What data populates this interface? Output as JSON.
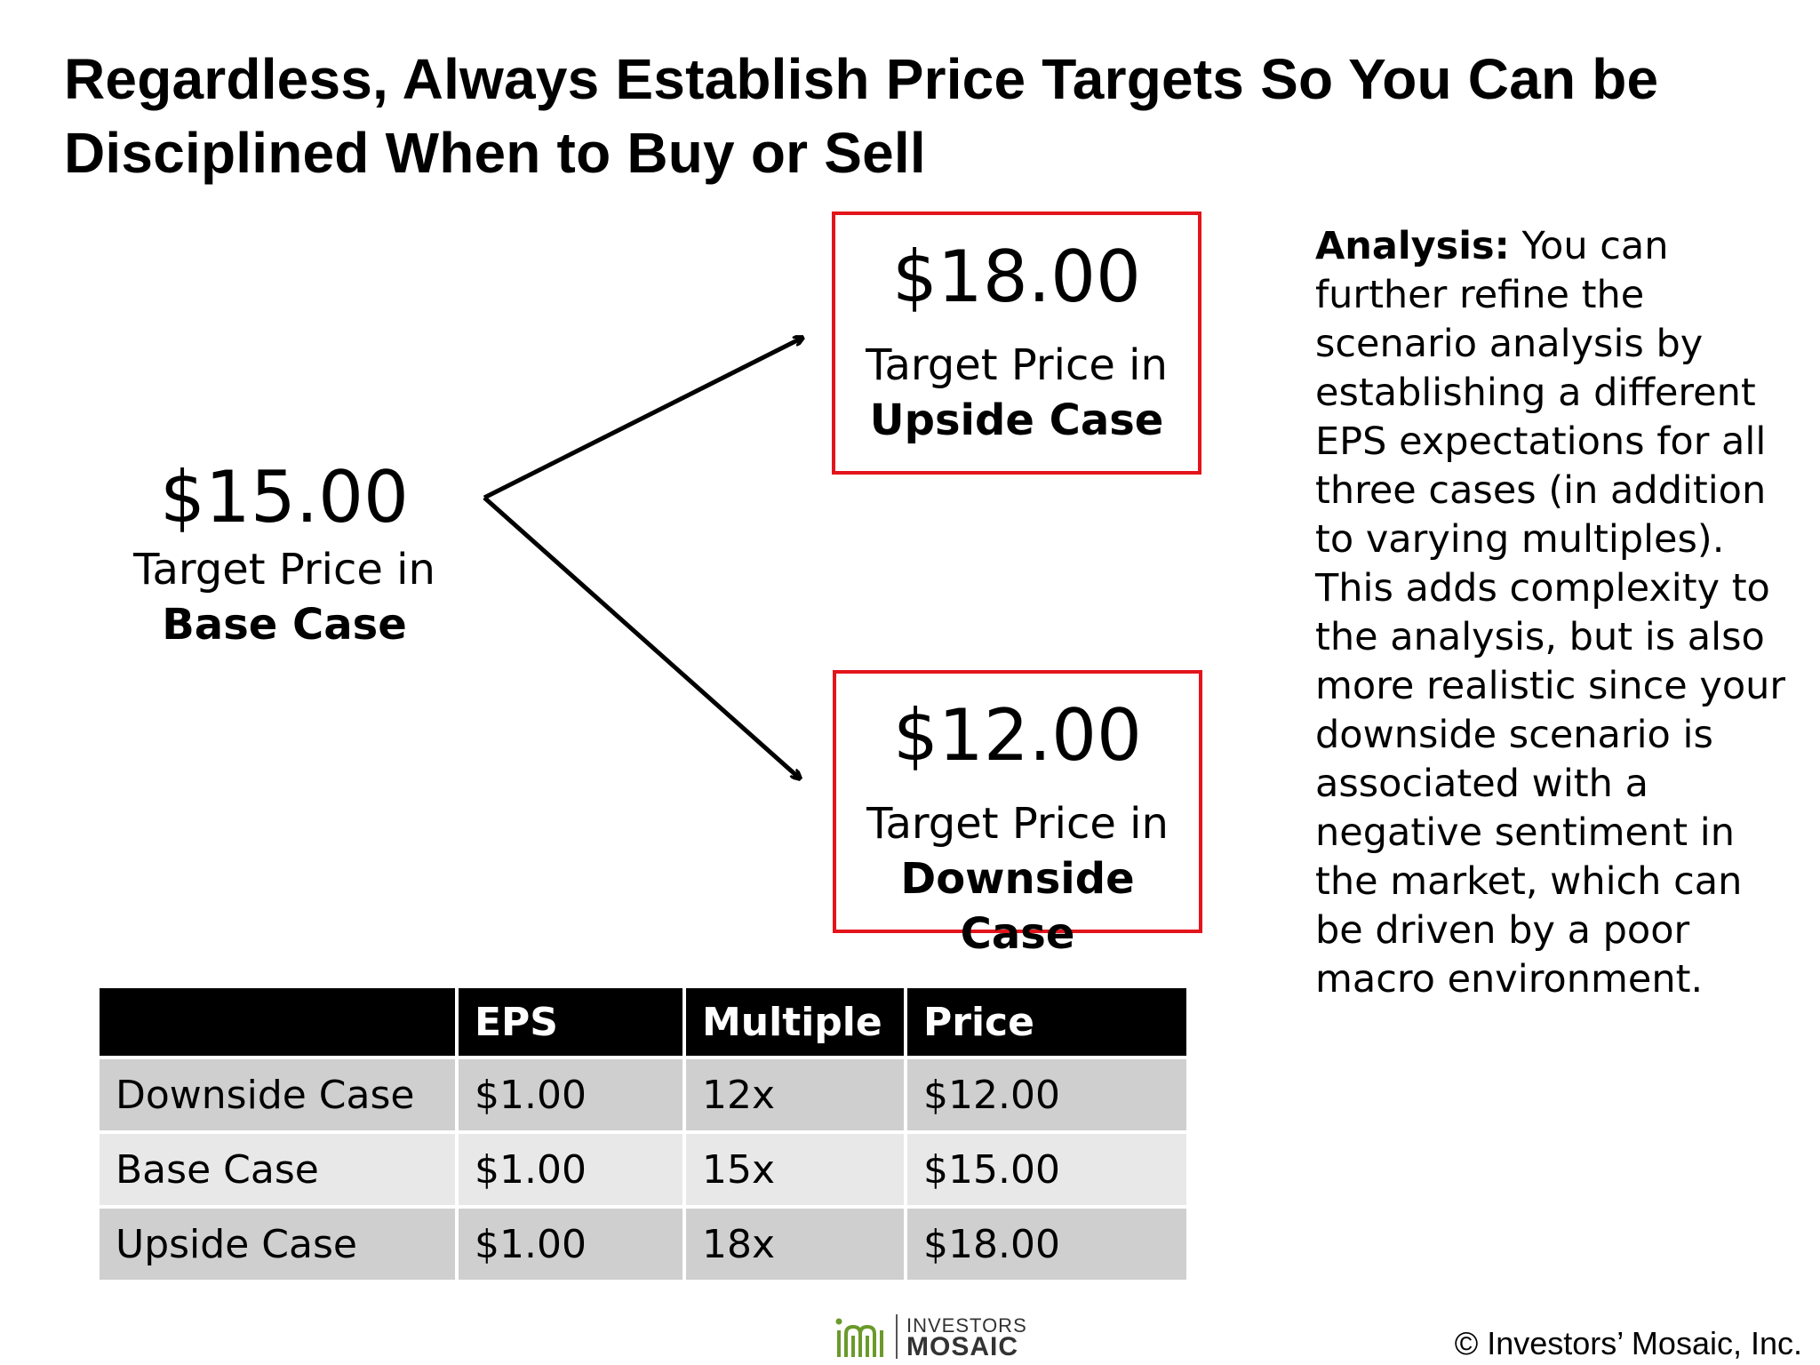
{
  "title": "Regardless, Always Establish Price Targets So You Can be Disciplined When to Buy or Sell",
  "base_case": {
    "price": "$15.00",
    "label_line1": "Target Price in",
    "label_line2": "Base Case"
  },
  "upside_case": {
    "price": "$18.00",
    "label_line1": "Target Price in",
    "label_line2": "Upside Case"
  },
  "downside_case": {
    "price": "$12.00",
    "label_line1": "Target Price in",
    "label_line2": "Downside Case"
  },
  "analysis": {
    "heading": "Analysis:",
    "text": "You can further refine the scenario analysis by establishing a different EPS expectations for all three cases (in addition to varying multiples). This adds complexity to the analysis, but is also more realistic since your downside scenario is associated with a negative sentiment in the market, which can be driven by a poor macro environment."
  },
  "table": {
    "headers": [
      "",
      "EPS",
      "Multiple",
      "Price"
    ],
    "rows": [
      [
        "Downside Case",
        "$1.00",
        "12x",
        "$12.00"
      ],
      [
        "Base Case",
        "$1.00",
        "15x",
        "$15.00"
      ],
      [
        "Upside Case",
        "$1.00",
        "18x",
        "$18.00"
      ]
    ]
  },
  "logo": {
    "line1": "INVESTORS",
    "line2": "MOSAIC"
  },
  "copyright": "© Investors’ Mosaic, Inc.",
  "colors": {
    "box_border": "#e3141b",
    "table_header": "#000000",
    "table_row_dark": "#cfcfcf",
    "table_row_light": "#e8e8e8",
    "logo_green": "#6a9a2a"
  }
}
